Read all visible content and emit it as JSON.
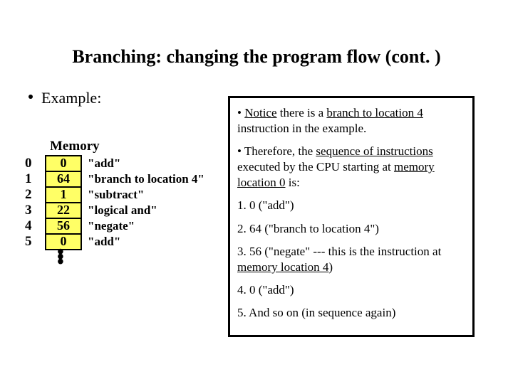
{
  "title": "Branching: changing the program flow (cont. )",
  "example_label": "Example:",
  "memory": {
    "header": "Memory",
    "rows": [
      {
        "addr": "0",
        "val": "0",
        "instr": "\"add\""
      },
      {
        "addr": "1",
        "val": "64",
        "instr": "\"branch to location 4\""
      },
      {
        "addr": "2",
        "val": "1",
        "instr": "\"subtract\""
      },
      {
        "addr": "3",
        "val": "22",
        "instr": "\"logical and\""
      },
      {
        "addr": "4",
        "val": "56",
        "instr": "\"negate\""
      },
      {
        "addr": "5",
        "val": "0",
        "instr": "\"add\""
      }
    ]
  },
  "notes": {
    "p1_a": "• ",
    "p1_b": "Notice",
    "p1_c": " there is a ",
    "p1_d": "branch to location 4",
    "p1_e": " instruction in the example.",
    "p2_a": "• Therefore, the ",
    "p2_b": "sequence of instructions",
    "p2_c": " executed by the CPU starting at ",
    "p2_d": "memory location 0",
    "p2_e": " is:",
    "step1": "1. 0 (\"add\")",
    "step2": "2. 64 (\"branch to location 4\")",
    "step3_a": "3. 56 (\"negate\" --- this is the instruction at ",
    "step3_b": "memory location 4",
    "step3_c": ")",
    "step4": "4. 0 (\"add\")",
    "step5": "5. And so on (in sequence again)"
  }
}
